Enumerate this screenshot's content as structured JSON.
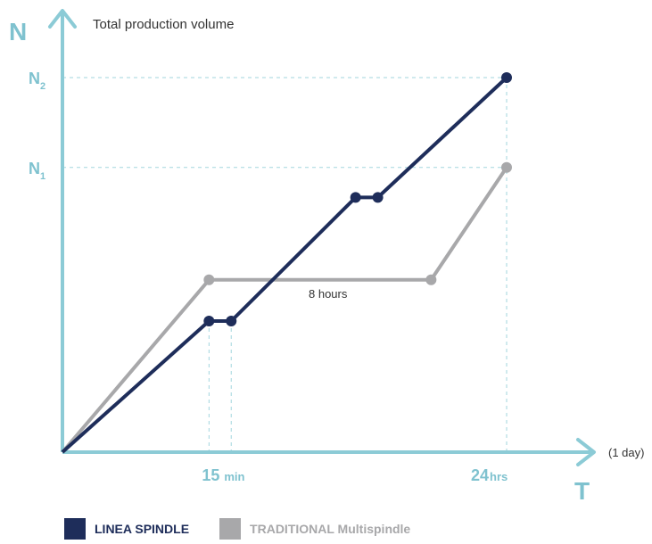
{
  "chart_data": {
    "type": "line",
    "title": "Total production volume",
    "y_axis_letter": "N",
    "x_axis_letter": "T",
    "x_axis_note": "(1 day)",
    "y_ticks": [
      {
        "main": "N",
        "sub": "2",
        "value": 2
      },
      {
        "main": "N",
        "sub": "1",
        "value": 1
      }
    ],
    "x_ticks": [
      {
        "main": "15",
        "unit": "min"
      },
      {
        "main": "24",
        "unit": "hrs"
      }
    ],
    "annotation": "8 hours",
    "series": [
      {
        "name": "LINEA SPINDLE",
        "color": "#1e2d5a",
        "points": [
          [
            0,
            0
          ],
          [
            0.33,
            0.35
          ],
          [
            0.38,
            0.35
          ],
          [
            0.66,
            0.68
          ],
          [
            0.71,
            0.68
          ],
          [
            1.0,
            1.0
          ]
        ]
      },
      {
        "name": "TRADITIONAL Multispindle",
        "color": "#a8a8aa",
        "points": [
          [
            0,
            0
          ],
          [
            0.33,
            0.46
          ],
          [
            0.83,
            0.46
          ],
          [
            1.0,
            0.76
          ]
        ]
      }
    ],
    "axis_color": "#8ccbd6",
    "label_color": "#7fc2cf",
    "legend_position": "bottom-left"
  }
}
